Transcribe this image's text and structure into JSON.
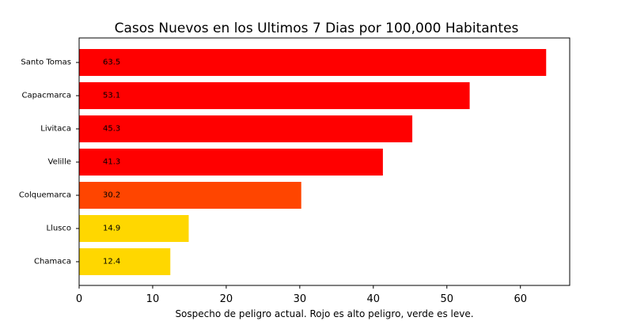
{
  "chart_data": {
    "type": "bar",
    "orientation": "horizontal",
    "title": "Casos Nuevos en los Ultimos 7 Dias por 100,000 Habitantes",
    "xlabel": "Sospecho de peligro actual. Rojo es alto peligro, verde es leve.",
    "ylabel": "",
    "categories": [
      "Santo Tomas",
      "Capacmarca",
      "Livitaca",
      "Velille",
      "Colquemarca",
      "Llusco",
      "Chamaca"
    ],
    "values": [
      63.5,
      53.1,
      45.3,
      41.3,
      30.2,
      14.9,
      12.4
    ],
    "value_labels": [
      "63.5",
      "53.1",
      "45.3",
      "41.3",
      "30.2",
      "14.9",
      "12.4"
    ],
    "colors": [
      "#ff0000",
      "#ff0000",
      "#ff0000",
      "#ff0000",
      "#ff4500",
      "#ffd700",
      "#ffd700"
    ],
    "xticks": [
      0,
      10,
      20,
      30,
      40,
      50,
      60
    ],
    "xlim": [
      0,
      66.7
    ],
    "grid": false,
    "legend": "none"
  }
}
